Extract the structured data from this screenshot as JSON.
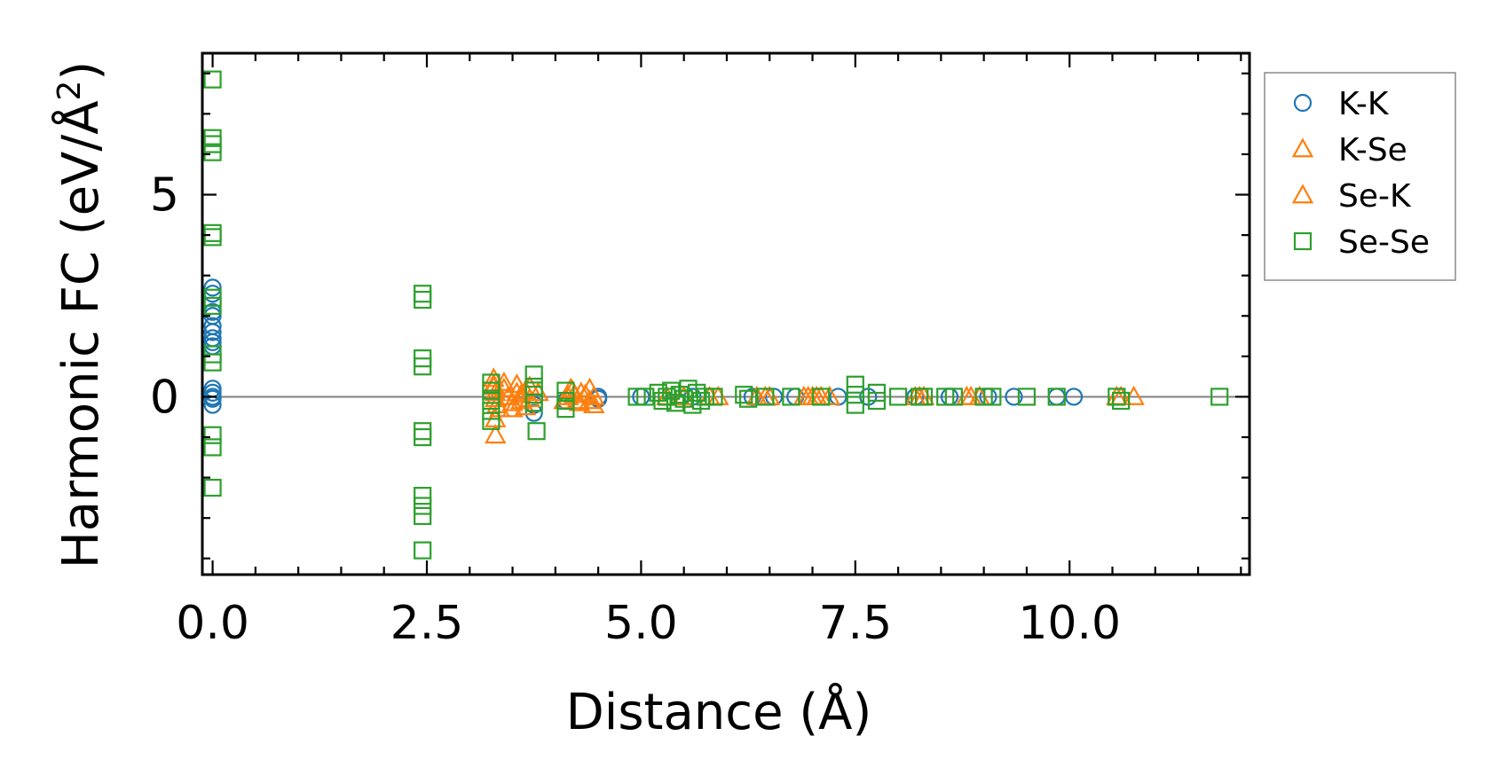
{
  "chart_data": {
    "type": "scatter",
    "title": "",
    "xlabel": "Distance (Å)",
    "ylabel_main": "Harmonic FC (eV/Å",
    "ylabel_sup": "2",
    "ylabel_close": ")",
    "xlim": [
      -0.12,
      12.1
    ],
    "ylim": [
      -4.4,
      8.5
    ],
    "xticks": [
      0.0,
      2.5,
      5.0,
      7.5,
      10.0
    ],
    "xtick_labels": [
      "0.0",
      "2.5",
      "5.0",
      "7.5",
      "10.0"
    ],
    "yticks": [
      0,
      5
    ],
    "ytick_labels": [
      "0",
      "5"
    ],
    "x_minor_step": 0.5,
    "y_minor_step": 1,
    "zero_line": true,
    "legend_position": "outside-top-right",
    "series": [
      {
        "name": "K-K",
        "marker": "circle",
        "color": "#1f77b4",
        "points": [
          [
            0,
            2.7
          ],
          [
            0,
            2.55
          ],
          [
            0,
            2.1
          ],
          [
            0,
            2.0
          ],
          [
            0,
            1.75
          ],
          [
            0,
            1.6
          ],
          [
            0,
            1.45
          ],
          [
            0,
            1.35
          ],
          [
            0,
            1.25
          ],
          [
            0,
            0.2
          ],
          [
            0,
            0.1
          ],
          [
            0,
            0.0
          ],
          [
            0,
            -0.05
          ],
          [
            0,
            -0.2
          ],
          [
            3.75,
            -0.4
          ],
          [
            3.75,
            -0.2
          ],
          [
            4.12,
            -0.1
          ],
          [
            4.5,
            0.0
          ],
          [
            4.5,
            -0.05
          ],
          [
            5.0,
            0.0
          ],
          [
            5.6,
            0.0
          ],
          [
            6.3,
            0.0
          ],
          [
            6.55,
            0.0
          ],
          [
            6.8,
            0.0
          ],
          [
            7.3,
            0.0
          ],
          [
            7.65,
            0.0
          ],
          [
            8.2,
            0.0
          ],
          [
            8.6,
            0.0
          ],
          [
            9.05,
            0.0
          ],
          [
            9.35,
            0.0
          ],
          [
            9.85,
            0.0
          ],
          [
            10.05,
            0.0
          ]
        ]
      },
      {
        "name": "K-Se",
        "marker": "triangle",
        "color": "#ff7f0e",
        "points": [
          [
            3.28,
            0.45
          ],
          [
            3.28,
            0.25
          ],
          [
            3.3,
            0.1
          ],
          [
            3.3,
            -0.05
          ],
          [
            3.32,
            -0.2
          ],
          [
            3.3,
            -0.55
          ],
          [
            3.3,
            -0.95
          ],
          [
            3.4,
            0.2
          ],
          [
            3.45,
            0.0
          ],
          [
            3.5,
            -0.15
          ],
          [
            3.55,
            0.1
          ],
          [
            3.6,
            -0.1
          ],
          [
            3.65,
            0.15
          ],
          [
            3.7,
            -0.05
          ],
          [
            3.8,
            0.1
          ],
          [
            4.15,
            0.0
          ],
          [
            4.2,
            0.15
          ],
          [
            4.25,
            -0.1
          ],
          [
            4.3,
            0.1
          ],
          [
            4.4,
            0.2
          ],
          [
            4.45,
            0.0
          ],
          [
            4.45,
            -0.2
          ],
          [
            5.5,
            0.0
          ],
          [
            5.8,
            0.0
          ],
          [
            6.35,
            0.0
          ],
          [
            6.45,
            0.0
          ],
          [
            6.9,
            0.0
          ],
          [
            7.0,
            0.0
          ],
          [
            7.1,
            0.0
          ],
          [
            7.2,
            0.0
          ],
          [
            8.2,
            0.0
          ],
          [
            8.3,
            0.0
          ],
          [
            8.8,
            0.0
          ],
          [
            8.95,
            0.0
          ],
          [
            10.55,
            0.0
          ],
          [
            10.75,
            0.0
          ]
        ]
      },
      {
        "name": "Se-K",
        "marker": "triangle",
        "color": "#ff7f0e",
        "points": [
          [
            3.28,
            0.3
          ],
          [
            3.35,
            -0.3
          ],
          [
            3.4,
            0.35
          ],
          [
            3.5,
            -0.3
          ],
          [
            3.55,
            0.3
          ],
          [
            3.6,
            0.05
          ],
          [
            3.65,
            -0.25
          ],
          [
            3.7,
            0.25
          ],
          [
            4.1,
            -0.1
          ],
          [
            4.18,
            0.2
          ],
          [
            4.22,
            0.05
          ],
          [
            4.28,
            -0.15
          ],
          [
            4.35,
            0.05
          ],
          [
            4.4,
            -0.1
          ],
          [
            5.3,
            0.0
          ],
          [
            5.9,
            0.0
          ],
          [
            6.5,
            0.0
          ],
          [
            6.95,
            0.0
          ],
          [
            7.05,
            0.0
          ],
          [
            8.25,
            0.0
          ],
          [
            8.85,
            0.0
          ],
          [
            10.6,
            0.0
          ]
        ]
      },
      {
        "name": "Se-Se",
        "marker": "square",
        "color": "#2ca02c",
        "points": [
          [
            0,
            7.85
          ],
          [
            0,
            6.4
          ],
          [
            0,
            6.25
          ],
          [
            0,
            6.05
          ],
          [
            0,
            4.05
          ],
          [
            0,
            3.95
          ],
          [
            0,
            2.45
          ],
          [
            0,
            2.25
          ],
          [
            0,
            1.05
          ],
          [
            0,
            0.85
          ],
          [
            0,
            -0.95
          ],
          [
            0,
            -1.25
          ],
          [
            0,
            -2.25
          ],
          [
            2.45,
            2.55
          ],
          [
            2.45,
            2.4
          ],
          [
            2.45,
            0.95
          ],
          [
            2.45,
            0.75
          ],
          [
            2.45,
            -0.85
          ],
          [
            2.45,
            -1.0
          ],
          [
            2.45,
            -2.45
          ],
          [
            2.45,
            -2.7
          ],
          [
            2.45,
            -2.95
          ],
          [
            2.45,
            -3.8
          ],
          [
            3.25,
            0.35
          ],
          [
            3.25,
            0.15
          ],
          [
            3.25,
            -0.1
          ],
          [
            3.25,
            -0.35
          ],
          [
            3.25,
            -0.6
          ],
          [
            3.75,
            0.55
          ],
          [
            3.75,
            0.25
          ],
          [
            3.75,
            0.05
          ],
          [
            3.75,
            -0.15
          ],
          [
            3.78,
            -0.85
          ],
          [
            4.12,
            0.15
          ],
          [
            4.12,
            -0.1
          ],
          [
            4.12,
            -0.3
          ],
          [
            4.95,
            0.0
          ],
          [
            5.05,
            0.0
          ],
          [
            5.2,
            0.1
          ],
          [
            5.25,
            -0.1
          ],
          [
            5.3,
            0.0
          ],
          [
            5.35,
            0.15
          ],
          [
            5.4,
            -0.15
          ],
          [
            5.45,
            0.05
          ],
          [
            5.5,
            -0.05
          ],
          [
            5.55,
            0.2
          ],
          [
            5.6,
            -0.2
          ],
          [
            5.65,
            0.1
          ],
          [
            5.7,
            -0.1
          ],
          [
            5.75,
            0.0
          ],
          [
            5.85,
            0.0
          ],
          [
            6.2,
            0.05
          ],
          [
            6.25,
            -0.05
          ],
          [
            6.45,
            0.0
          ],
          [
            6.75,
            0.0
          ],
          [
            7.1,
            0.0
          ],
          [
            7.5,
            0.3
          ],
          [
            7.5,
            0.05
          ],
          [
            7.5,
            -0.2
          ],
          [
            7.75,
            0.1
          ],
          [
            7.75,
            -0.1
          ],
          [
            8.0,
            0.0
          ],
          [
            8.25,
            0.0
          ],
          [
            8.3,
            0.0
          ],
          [
            8.55,
            0.0
          ],
          [
            8.65,
            0.0
          ],
          [
            9.0,
            0.0
          ],
          [
            9.1,
            0.0
          ],
          [
            9.5,
            0.0
          ],
          [
            9.85,
            0.0
          ],
          [
            10.55,
            0.0
          ],
          [
            10.6,
            -0.1
          ],
          [
            11.75,
            0.0
          ]
        ]
      }
    ]
  }
}
